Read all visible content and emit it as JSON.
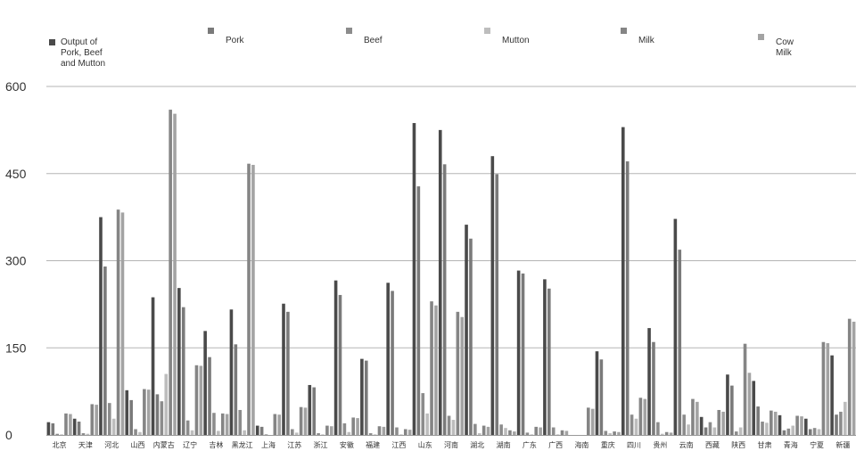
{
  "chart_data": {
    "type": "bar",
    "title": "",
    "xlabel": "",
    "ylabel": "",
    "ylim": [
      0,
      600
    ],
    "yticks": [
      "0",
      "150",
      "300",
      "450",
      "600"
    ],
    "grid": true,
    "legend_position": "top",
    "categories": [
      "北京",
      "天津",
      "河北",
      "山西",
      "内蒙古",
      "辽宁",
      "吉林",
      "黑龙江",
      "上海",
      "江苏",
      "浙江",
      "安徽",
      "福建",
      "江西",
      "山东",
      "河南",
      "湖北",
      "湖南",
      "广东",
      "广西",
      "海南",
      "重庆",
      "四川",
      "贵州",
      "云南",
      "西藏",
      "陕西",
      "甘肃",
      "青海",
      "宁夏",
      "新疆"
    ],
    "series": [
      {
        "name": "Output of Pork, Beef and Mutton",
        "legend_lines": [
          "Output of",
          "Pork, Beef",
          "and Mutton"
        ],
        "color": "#4a4a4a",
        "values": [
          22,
          28,
          375,
          77,
          237,
          253,
          179,
          216,
          16,
          226,
          86,
          266,
          131,
          262,
          537,
          525,
          362,
          480,
          283,
          268,
          0,
          144,
          530,
          184,
          372,
          31,
          104,
          93,
          34,
          28,
          137
        ]
      },
      {
        "name": "Pork",
        "legend_lines": [
          "Pork"
        ],
        "color": "#7a7a7a",
        "values": [
          20,
          23,
          290,
          60,
          70,
          220,
          134,
          156,
          14,
          212,
          82,
          241,
          128,
          248,
          428,
          466,
          338,
          449,
          278,
          252,
          0,
          130,
          471,
          160,
          319,
          13,
          85,
          49,
          8,
          10,
          35
        ]
      },
      {
        "name": "Beef",
        "legend_lines": [
          "Beef"
        ],
        "color": "#8c8c8c",
        "values": [
          2,
          3,
          55,
          10,
          58,
          25,
          38,
          43,
          1,
          10,
          3,
          20,
          3,
          13,
          72,
          33,
          19,
          18,
          4,
          13,
          0,
          7,
          35,
          22,
          35,
          22,
          6,
          23,
          11,
          12,
          40
        ]
      },
      {
        "name": "Mutton",
        "legend_lines": [
          "Mutton"
        ],
        "color": "#bdbdbd",
        "values": [
          1,
          2,
          28,
          5,
          105,
          8,
          7,
          8,
          0,
          4,
          1,
          5,
          1,
          1,
          37,
          26,
          3,
          12,
          1,
          1,
          0,
          3,
          28,
          2,
          18,
          13,
          13,
          21,
          16,
          10,
          57
        ]
      },
      {
        "name": "Milk",
        "legend_lines": [
          "Milk"
        ],
        "color": "#858585",
        "values": [
          37,
          53,
          388,
          79,
          560,
          120,
          37,
          467,
          36,
          48,
          16,
          30,
          15,
          10,
          230,
          212,
          16,
          8,
          14,
          8,
          47,
          6,
          64,
          5,
          62,
          43,
          157,
          42,
          33,
          160,
          200
        ]
      },
      {
        "name": "Cow Milk",
        "legend_lines": [
          "Cow",
          "Milk"
        ],
        "color": "#a3a3a3",
        "values": [
          36,
          52,
          383,
          78,
          553,
          119,
          36,
          465,
          35,
          47,
          15,
          29,
          14,
          9,
          223,
          203,
          14,
          6,
          13,
          7,
          45,
          5,
          62,
          4,
          57,
          40,
          107,
          40,
          32,
          158,
          195
        ]
      }
    ]
  }
}
